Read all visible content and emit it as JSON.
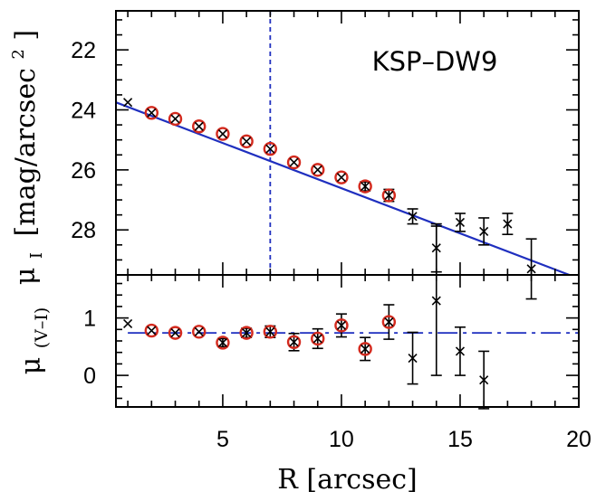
{
  "chart_data": [
    {
      "type": "scatter",
      "panel": "top",
      "ylabel_symbol": "μ",
      "ylabel_sub": "I",
      "ylabel_unit": "[mag/arcsec",
      "ylabel_sup": "2",
      "ylabel_close": "]",
      "annotation": "KSP–DW9",
      "xlim": [
        0.5,
        20
      ],
      "ylim": [
        29.5,
        20.7
      ],
      "y_inverted": true,
      "yticks": [
        22,
        24,
        26,
        28
      ],
      "points": [
        {
          "x": 1,
          "y": 23.75,
          "err": 0.1,
          "circled": false
        },
        {
          "x": 2,
          "y": 24.1,
          "err": 0.05,
          "circled": true
        },
        {
          "x": 3,
          "y": 24.3,
          "err": 0.05,
          "circled": true
        },
        {
          "x": 4,
          "y": 24.55,
          "err": 0.05,
          "circled": true
        },
        {
          "x": 5,
          "y": 24.8,
          "err": 0.05,
          "circled": true
        },
        {
          "x": 6,
          "y": 25.05,
          "err": 0.05,
          "circled": true
        },
        {
          "x": 7,
          "y": 25.3,
          "err": 0.1,
          "circled": true
        },
        {
          "x": 8,
          "y": 25.75,
          "err": 0.1,
          "circled": true
        },
        {
          "x": 9,
          "y": 26.0,
          "err": 0.1,
          "circled": true
        },
        {
          "x": 10,
          "y": 26.25,
          "err": 0.1,
          "circled": true
        },
        {
          "x": 11,
          "y": 26.55,
          "err": 0.15,
          "circled": true
        },
        {
          "x": 12,
          "y": 26.85,
          "err": 0.2,
          "circled": true
        },
        {
          "x": 13,
          "y": 27.55,
          "err": 0.25,
          "circled": false
        },
        {
          "x": 14,
          "y": 28.6,
          "err": 0.8,
          "circled": false
        },
        {
          "x": 15,
          "y": 27.75,
          "err": 0.3,
          "circled": false
        },
        {
          "x": 16,
          "y": 28.05,
          "err": 0.45,
          "circled": false
        },
        {
          "x": 17,
          "y": 27.8,
          "err": 0.35,
          "circled": false
        },
        {
          "x": 18,
          "y": 29.3,
          "err": 1.0,
          "circled": false
        }
      ],
      "fit_line": {
        "x": [
          0.5,
          19.6
        ],
        "y": [
          23.75,
          29.5
        ],
        "color": "#1f2fbf"
      },
      "vline": {
        "x": 7,
        "color": "#1f2fbf"
      }
    },
    {
      "type": "scatter",
      "panel": "bottom",
      "ylabel_symbol": "μ",
      "ylabel_sub": "(V–I)",
      "xlabel": "R [arcsec]",
      "xlim": [
        0.5,
        20
      ],
      "ylim": [
        -0.55,
        1.75
      ],
      "xticks": [
        5,
        10,
        15,
        20
      ],
      "yticks": [
        0,
        1
      ],
      "points": [
        {
          "x": 1,
          "y": 0.9,
          "err": 0.05,
          "circled": false
        },
        {
          "x": 2,
          "y": 0.78,
          "err": 0.05,
          "circled": true
        },
        {
          "x": 3,
          "y": 0.74,
          "err": 0.06,
          "circled": true
        },
        {
          "x": 4,
          "y": 0.76,
          "err": 0.06,
          "circled": true
        },
        {
          "x": 5,
          "y": 0.57,
          "err": 0.07,
          "circled": true
        },
        {
          "x": 6,
          "y": 0.74,
          "err": 0.08,
          "circled": true
        },
        {
          "x": 7,
          "y": 0.76,
          "err": 0.1,
          "circled": true
        },
        {
          "x": 8,
          "y": 0.58,
          "err": 0.15,
          "circled": true
        },
        {
          "x": 9,
          "y": 0.64,
          "err": 0.17,
          "circled": true
        },
        {
          "x": 10,
          "y": 0.87,
          "err": 0.2,
          "circled": true
        },
        {
          "x": 11,
          "y": 0.46,
          "err": 0.2,
          "circled": true
        },
        {
          "x": 12,
          "y": 0.93,
          "err": 0.3,
          "circled": true
        },
        {
          "x": 13,
          "y": 0.3,
          "err": 0.45,
          "circled": false
        },
        {
          "x": 14,
          "y": 1.3,
          "err": 1.3,
          "circled": false
        },
        {
          "x": 15,
          "y": 0.42,
          "err": 0.42,
          "circled": false
        },
        {
          "x": 16,
          "y": -0.08,
          "err": 0.5,
          "circled": false
        }
      ],
      "hline": {
        "y": 0.74,
        "color": "#1f2fbf"
      }
    }
  ],
  "colors": {
    "circle": "#d42a1e",
    "line": "#1f2fbf",
    "marker": "#000000"
  }
}
